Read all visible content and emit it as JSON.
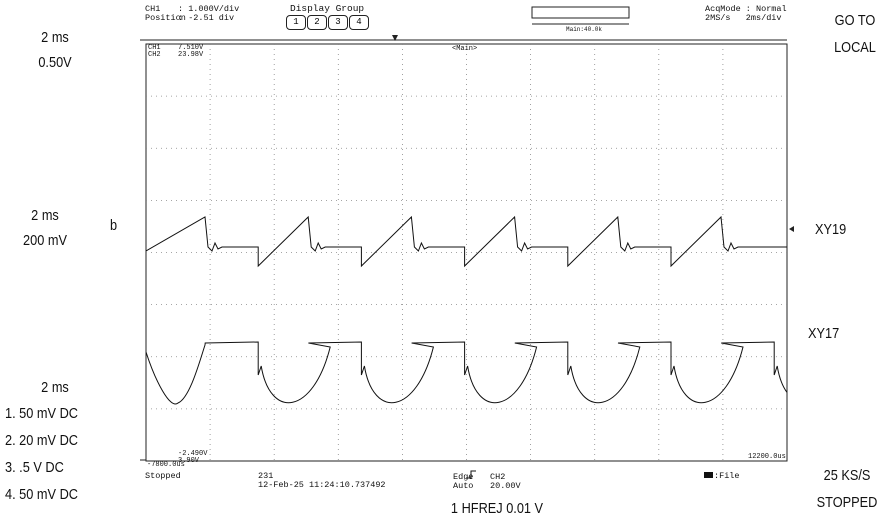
{
  "annotations": {
    "left": [
      "2 ms",
      "0.50V",
      "2 ms",
      "200 mV",
      "b",
      "2 ms",
      "1. 50 mV DC",
      "2. 20 mV DC",
      "3. .5 V DC",
      "4. 50 mV DC"
    ],
    "right": [
      "GO TO",
      "LOCAL",
      "XY19",
      "XY17",
      "25 KS/S",
      "STOPPED"
    ],
    "bottom": "1 HFREJ 0.01 V"
  },
  "scope": {
    "header": {
      "ch": "CH1",
      "scale": ": 1.000V/div",
      "position_label": "Position",
      "position": ": -2.51 div",
      "display_group": "Display Group",
      "groups": [
        "1",
        "2",
        "3",
        "4"
      ],
      "zoom": "Main:40.0k",
      "acq_mode": "AcqMode : Normal",
      "rate": "2MS/s   2ms/div"
    },
    "screen": {
      "ch1": "CH1",
      "ch1_value": "7.510V",
      "ch2": "CH2",
      "ch2_value": "23.98V",
      "window": "<Main>",
      "left_time": "-7800.0us",
      "cursor_v1": "-2.490V",
      "cursor_v2": "3.90V",
      "right_time": "12200.0us"
    },
    "footer": {
      "status": "Stopped",
      "count": "231",
      "timestamp": "12-Feb-25 11:24:10.737492",
      "trigger": "Edge",
      "trigger_mode": "Auto",
      "trigger_source": "CH2",
      "trigger_level": "20.00V",
      "save": ":File"
    }
  }
}
